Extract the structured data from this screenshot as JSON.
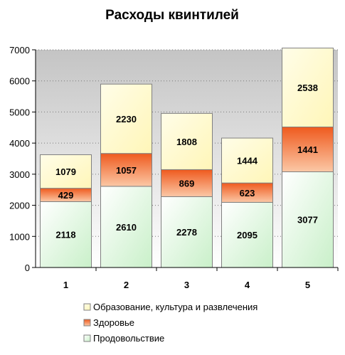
{
  "chart_data": {
    "type": "bar",
    "stacked": true,
    "title": "Расходы квинтилей",
    "xlabel": "",
    "ylabel": "",
    "categories": [
      "1",
      "2",
      "3",
      "4",
      "5"
    ],
    "ylim": [
      0,
      7000
    ],
    "yticks": [
      "0",
      "1000",
      "2000",
      "3000",
      "4000",
      "5000",
      "6000",
      "7000"
    ],
    "grid": true,
    "legend_position": "bottom",
    "series": [
      {
        "name": "Продовольствие",
        "values": [
          2118,
          2610,
          2278,
          2095,
          3077
        ],
        "color": "#d8f5d8"
      },
      {
        "name": "Здоровье",
        "values": [
          429,
          1057,
          869,
          623,
          1441
        ],
        "color": "#f47a3a"
      },
      {
        "name": "Образование, культура и развлечения",
        "values": [
          1079,
          2230,
          1808,
          1444,
          2538
        ],
        "color": "#fffbd6"
      }
    ],
    "legend_order": [
      2,
      1,
      0
    ]
  }
}
